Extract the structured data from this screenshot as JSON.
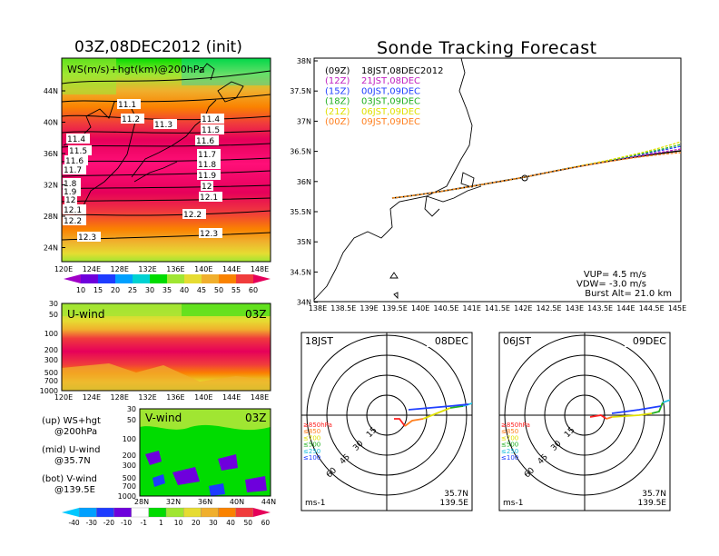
{
  "titles": {
    "main": "Sonde Tracking Forecast",
    "left": "03Z,08DEC2012 (init)"
  },
  "ws_map": {
    "label": "WS(m/s)+hgt(km)@200hPa",
    "lat_ticks": [
      "44N",
      "40N",
      "36N",
      "32N",
      "28N",
      "24N"
    ],
    "lon_ticks": [
      "120E",
      "124E",
      "128E",
      "132E",
      "136E",
      "140E",
      "144E",
      "148E"
    ],
    "hgt_labels": [
      "11.1",
      "11.2",
      "11.3",
      "11.4",
      "11.5",
      "11.6",
      "11.7",
      "11.8",
      "11.9",
      "12",
      "12.1",
      "12.2",
      "12.3",
      "11.4",
      "11.5",
      "11.6",
      "11.7",
      "1.8",
      "1.9",
      "12",
      "12.1",
      "12.2",
      "12.3"
    ],
    "colorbar_ticks": [
      "10",
      "15",
      "20",
      "25",
      "30",
      "35",
      "40",
      "45",
      "50",
      "55",
      "60"
    ]
  },
  "u_wind": {
    "label": "U-wind",
    "time": "03Z",
    "p_ticks": [
      "30",
      "50",
      "100",
      "200",
      "300",
      "500",
      "700",
      "1000"
    ],
    "lon_ticks": [
      "120E",
      "124E",
      "128E",
      "132E",
      "136E",
      "140E",
      "144E",
      "148E"
    ]
  },
  "v_wind": {
    "label": "V-wind",
    "time": "03Z",
    "p_ticks": [
      "30",
      "50",
      "100",
      "200",
      "300",
      "500",
      "700",
      "1000"
    ],
    "lat_ticks": [
      "28N",
      "32N",
      "36N",
      "40N",
      "44N"
    ],
    "colorbar_ticks": [
      "-40",
      "-30",
      "-20",
      "-10",
      "-1",
      "1",
      "10",
      "20",
      "30",
      "40",
      "50",
      "60"
    ]
  },
  "notes": [
    {
      "head": "(up) WS+hgt",
      "sub": "@200hPa"
    },
    {
      "head": "(mid) U-wind",
      "sub": "@35.7N"
    },
    {
      "head": "(bot) V-wind",
      "sub": "@139.5E"
    }
  ],
  "track_map": {
    "lat_ticks": [
      "38N",
      "37.5N",
      "37N",
      "36.5N",
      "36N",
      "35.5N",
      "35N",
      "34.5N",
      "34N"
    ],
    "lon_ticks": [
      "138E",
      "138.5E",
      "139E",
      "139.5E",
      "140E",
      "140.5E",
      "141E",
      "141.5E",
      "142E",
      "142.5E",
      "143E",
      "143.5E",
      "144E",
      "144.5E",
      "145E"
    ],
    "legend": [
      {
        "run": "(09Z)",
        "time": "18JST,08DEC2012",
        "color": "#000000"
      },
      {
        "run": "(12Z)",
        "time": "21JST,08DEC",
        "color": "#c020c0"
      },
      {
        "run": "(15Z)",
        "time": "00JST,09DEC",
        "color": "#2040ff"
      },
      {
        "run": "(18Z)",
        "time": "03JST,09DEC",
        "color": "#20b020"
      },
      {
        "run": "(21Z)",
        "time": "06JST,09DEC",
        "color": "#e0e000"
      },
      {
        "run": "(00Z)",
        "time": "09JST,09DEC",
        "color": "#ff8020"
      }
    ],
    "params": [
      "VUP= 4.5 m/s",
      "VDW= -3.0 m/s",
      "Burst Alt= 21.0 km"
    ]
  },
  "hodographs": [
    {
      "time": "18JST",
      "date": "08DEC",
      "lat": "35.7N",
      "lon": "139.5E",
      "unit": "ms-1"
    },
    {
      "time": "06JST",
      "date": "09DEC",
      "lat": "35.7N",
      "lon": "139.5E",
      "unit": "ms-1"
    }
  ],
  "hodo_rings": [
    "15",
    "30",
    "45",
    "60"
  ],
  "hodo_legend": [
    {
      "text": "≥850hPa",
      "color": "#ff2020"
    },
    {
      "text": "≤850",
      "color": "#ff8020"
    },
    {
      "text": "≤700",
      "color": "#e0e000"
    },
    {
      "text": "≤500",
      "color": "#20b020"
    },
    {
      "text": "≤250",
      "color": "#20c0e0"
    },
    {
      "text": "≤100",
      "color": "#2040ff"
    }
  ],
  "colors": {
    "ws_scale": [
      "#a000c8",
      "#6e00dc",
      "#1e3cff",
      "#00a0ff",
      "#00d2d2",
      "#00dc00",
      "#a0e632",
      "#e6dc32",
      "#f0af2d",
      "#fa8200",
      "#f03c3c",
      "#e6005a"
    ],
    "v_scale": [
      "#00c8ff",
      "#00a0ff",
      "#1e3cff",
      "#6e00dc",
      "#ffffff",
      "#00dc00",
      "#a0e632",
      "#e6dc32",
      "#f0af2d",
      "#fa8200",
      "#f03c3c",
      "#e6005a"
    ]
  }
}
